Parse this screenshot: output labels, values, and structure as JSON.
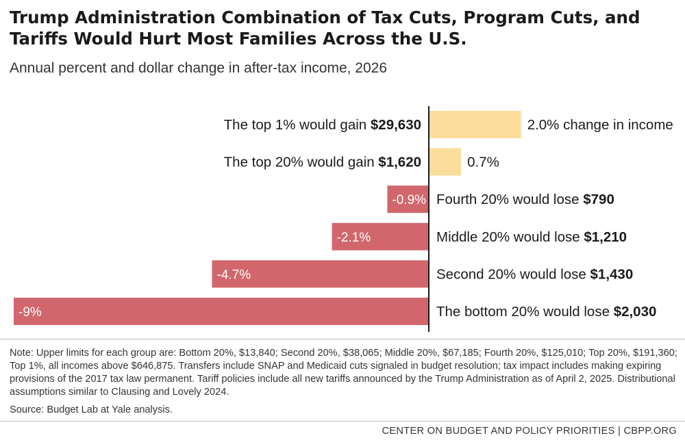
{
  "title": "Trump Administration Combination of Tax Cuts, Program Cuts, and Tariffs Would Hurt Most Families Across the U.S.",
  "subtitle": "Annual percent and dollar change in after-tax income, 2026",
  "chart_data": {
    "type": "bar",
    "orientation": "horizontal",
    "title": "Trump Administration Combination of Tax Cuts, Program Cuts, and Tariffs Would Hurt Most Families Across the U.S.",
    "subtitle": "Annual percent and dollar change in after-tax income, 2026",
    "xlim": [
      -9,
      2
    ],
    "colors": {
      "gain": "#fbdd9b",
      "loss": "#d1676c"
    },
    "rows": [
      {
        "prefix": "The top 1% would gain ",
        "amount": "$29,630",
        "value": 2.0,
        "value_label": "2.0% change in income"
      },
      {
        "prefix": "The top 20% would gain ",
        "amount": "$1,620",
        "value": 0.7,
        "value_label": "0.7%"
      },
      {
        "prefix": "Fourth 20% would lose ",
        "amount": "$790",
        "value": -0.9,
        "value_label": "-0.9%"
      },
      {
        "prefix": "Middle 20% would lose ",
        "amount": "$1,210",
        "value": -2.1,
        "value_label": "-2.1%"
      },
      {
        "prefix": "Second 20% would lose ",
        "amount": "$1,430",
        "value": -4.7,
        "value_label": "-4.7%"
      },
      {
        "prefix": "The bottom 20% would lose ",
        "amount": "$2,030",
        "value": -9,
        "value_label": "-9%"
      }
    ]
  },
  "note": "Note: Upper limits for each group are: Bottom 20%, $13,840; Second 20%, $38,065; Middle 20%, $67,185; Fourth 20%, $125,010; Top 20%, $191,360; Top 1%, all incomes above $646,875. Transfers include SNAP and Medicaid cuts signaled in budget resolution; tax impact includes making expiring provisions of the 2017 tax law permanent. Tariff policies include all new tariffs announced by the Trump Administration as of April 2, 2025. Distributional assumptions similar to Clausing and Lovely 2024.",
  "source": "Source: Budget Lab at Yale analysis.",
  "footer": "CENTER ON BUDGET AND POLICY PRIORITIES | CBPP.ORG"
}
